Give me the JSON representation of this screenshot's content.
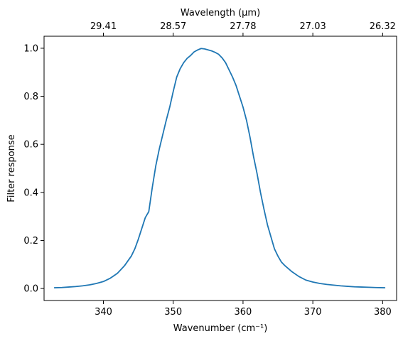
{
  "chart_data": {
    "type": "line",
    "xlabel": "Wavenumber (cm⁻¹)",
    "ylabel": "Filter response",
    "top_xlabel": "Wavelength (μm)",
    "xlim": [
      331.5,
      382
    ],
    "ylim": [
      -0.05,
      1.05
    ],
    "grid": false,
    "legend": "none",
    "x_ticks": [
      340,
      350,
      360,
      370,
      380
    ],
    "x_tick_labels": [
      "340",
      "350",
      "360",
      "370",
      "380"
    ],
    "y_ticks": [
      0.0,
      0.2,
      0.4,
      0.6,
      0.8,
      1.0
    ],
    "y_tick_labels": [
      "0.0",
      "0.2",
      "0.4",
      "0.6",
      "0.8",
      "1.0"
    ],
    "top_x_ticks": [
      340,
      350,
      360,
      370,
      380
    ],
    "top_x_tick_labels": [
      "29.41",
      "28.57",
      "27.78",
      "27.03",
      "26.32"
    ],
    "color": "#1f77b4",
    "series": [
      {
        "x": [
          333.0,
          334.0,
          335.0,
          336.0,
          337.0,
          338.0,
          339.0,
          340.0,
          341.0,
          342.0,
          343.0,
          344.0,
          344.5,
          345.0,
          345.5,
          346.0,
          346.5,
          347.0,
          347.5,
          348.0,
          348.5,
          349.0,
          349.5,
          350.0,
          350.5,
          351.0,
          351.5,
          352.0,
          352.5,
          353.0,
          353.5,
          354.0,
          354.5,
          355.0,
          355.5,
          356.0,
          356.5,
          357.0,
          357.5,
          358.0,
          358.5,
          359.0,
          359.5,
          360.0,
          360.5,
          361.0,
          361.5,
          362.0,
          362.5,
          363.0,
          363.5,
          364.0,
          364.5,
          365.0,
          365.5,
          366.0,
          367.0,
          368.0,
          369.0,
          370.0,
          371.0,
          372.0,
          373.0,
          374.0,
          375.0,
          376.0,
          377.0,
          378.0,
          379.0,
          380.3
        ],
        "y": [
          0.003,
          0.004,
          0.006,
          0.008,
          0.011,
          0.015,
          0.021,
          0.029,
          0.043,
          0.063,
          0.094,
          0.135,
          0.165,
          0.205,
          0.25,
          0.295,
          0.32,
          0.42,
          0.51,
          0.58,
          0.64,
          0.7,
          0.755,
          0.82,
          0.88,
          0.915,
          0.94,
          0.958,
          0.97,
          0.985,
          0.993,
          0.999,
          0.997,
          0.993,
          0.989,
          0.983,
          0.975,
          0.96,
          0.94,
          0.91,
          0.88,
          0.845,
          0.8,
          0.755,
          0.7,
          0.63,
          0.55,
          0.48,
          0.4,
          0.33,
          0.265,
          0.215,
          0.165,
          0.135,
          0.11,
          0.095,
          0.07,
          0.05,
          0.035,
          0.027,
          0.021,
          0.017,
          0.014,
          0.011,
          0.009,
          0.007,
          0.006,
          0.005,
          0.004,
          0.003
        ]
      }
    ]
  }
}
